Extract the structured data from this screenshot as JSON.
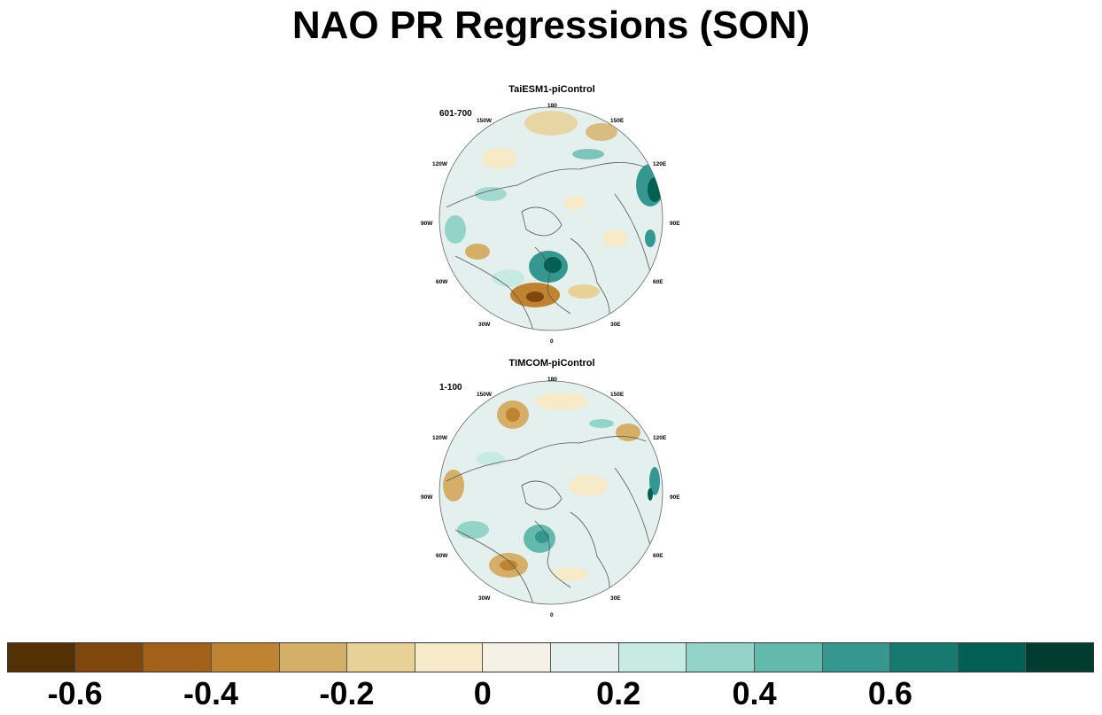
{
  "title": "NAO PR Regressions (SON)",
  "panels": [
    {
      "name": "TaiESM1-piControl",
      "years": "601-700",
      "lon_labels": [
        "180",
        "150E",
        "120E",
        "90E",
        "60E",
        "30E",
        "0",
        "30W",
        "60W",
        "90W",
        "120W",
        "150W"
      ]
    },
    {
      "name": "TIMCOM-piControl",
      "years": "1-100",
      "lon_labels": [
        "180",
        "150E",
        "120E",
        "90E",
        "60E",
        "30E",
        "0",
        "30W",
        "60W",
        "90W",
        "120W",
        "150W"
      ]
    }
  ],
  "colorbar": {
    "colors": [
      "#543005",
      "#7f470c",
      "#a2611a",
      "#c08332",
      "#d5af67",
      "#e8d196",
      "#f6eac8",
      "#f5f1e6",
      "#e4f0ee",
      "#c7eae3",
      "#94d3c8",
      "#64b9ad",
      "#35978f",
      "#167a71",
      "#015f53",
      "#003c30"
    ],
    "tick_labels": [
      "-0.6",
      "-0.4",
      "-0.2",
      "0",
      "0.2",
      "0.4",
      "0.6"
    ]
  }
}
